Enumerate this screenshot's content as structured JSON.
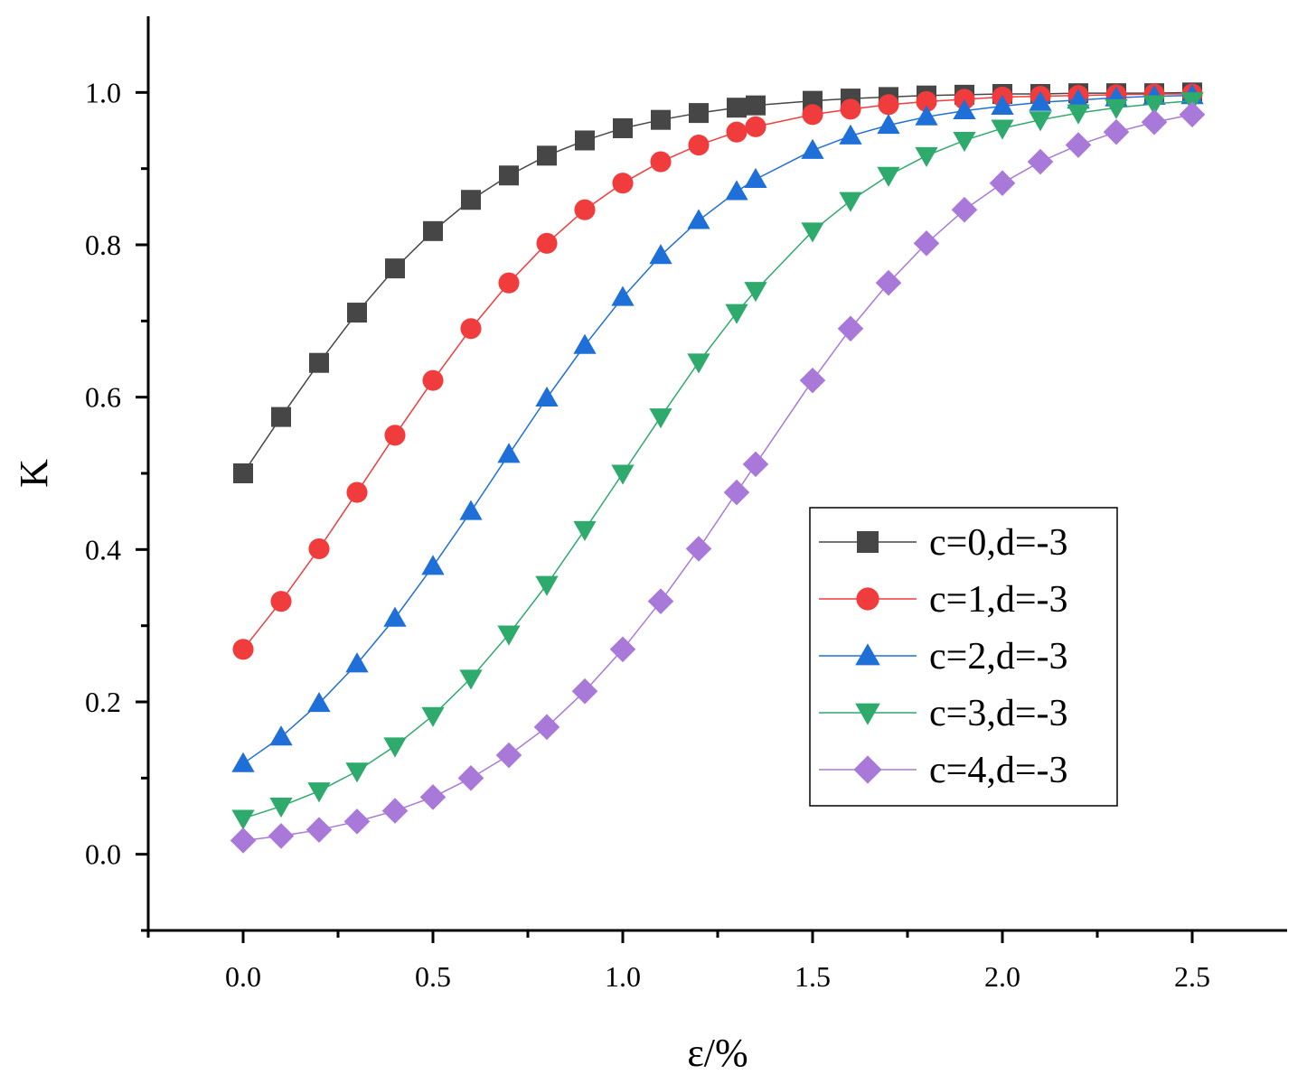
{
  "chart_data": {
    "type": "line",
    "title": "",
    "xlabel": "ε/%",
    "ylabel": "K",
    "xlim": [
      -0.25,
      2.75
    ],
    "ylim": [
      -0.1,
      1.1
    ],
    "xticks": [
      0.0,
      0.5,
      1.0,
      1.5,
      2.0,
      2.5
    ],
    "xtick_labels": [
      "0.0",
      "0.5",
      "1.0",
      "1.5",
      "2.0",
      "2.5"
    ],
    "yticks": [
      0.0,
      0.2,
      0.4,
      0.6,
      0.8,
      1.0
    ],
    "ytick_labels": [
      "0.0",
      "0.2",
      "0.4",
      "0.6",
      "0.8",
      "1.0"
    ],
    "grid": false,
    "legend_position": "center-right",
    "series": [
      {
        "name": "c=0,d=-3",
        "color": "#464646",
        "marker": "square",
        "x": [
          0,
          0.1,
          0.2,
          0.3,
          0.4,
          0.5,
          0.6,
          0.7,
          0.8,
          0.9,
          1.0,
          1.1,
          1.2,
          1.3,
          1.35,
          1.5,
          1.6,
          1.7,
          1.8,
          1.9,
          2.0,
          2.1,
          2.2,
          2.3,
          2.4,
          2.5
        ],
        "values": [
          0.5,
          0.574,
          0.645,
          0.711,
          0.769,
          0.818,
          0.859,
          0.891,
          0.917,
          0.937,
          0.953,
          0.964,
          0.973,
          0.98,
          0.983,
          0.989,
          0.992,
          0.994,
          0.996,
          0.997,
          0.998,
          0.998,
          0.999,
          0.999,
          0.999,
          1.0
        ]
      },
      {
        "name": "c=1,d=-3",
        "color": "#f03c3c",
        "marker": "circle",
        "x": [
          0,
          0.1,
          0.2,
          0.3,
          0.4,
          0.5,
          0.6,
          0.7,
          0.8,
          0.9,
          1.0,
          1.1,
          1.2,
          1.3,
          1.35,
          1.5,
          1.6,
          1.7,
          1.8,
          1.9,
          2.0,
          2.1,
          2.2,
          2.3,
          2.4,
          2.5
        ],
        "values": [
          0.269,
          0.332,
          0.401,
          0.475,
          0.55,
          0.622,
          0.69,
          0.75,
          0.802,
          0.846,
          0.881,
          0.909,
          0.931,
          0.948,
          0.955,
          0.971,
          0.978,
          0.984,
          0.988,
          0.991,
          0.994,
          0.995,
          0.996,
          0.997,
          0.998,
          0.998
        ]
      },
      {
        "name": "c=2,d=-3",
        "color": "#1f6fd9",
        "marker": "triangle-up",
        "x": [
          0,
          0.1,
          0.2,
          0.3,
          0.4,
          0.5,
          0.6,
          0.7,
          0.8,
          0.9,
          1.0,
          1.1,
          1.2,
          1.3,
          1.35,
          1.5,
          1.6,
          1.7,
          1.8,
          1.9,
          2.0,
          2.1,
          2.2,
          2.3,
          2.4,
          2.5
        ],
        "values": [
          0.119,
          0.154,
          0.198,
          0.25,
          0.31,
          0.378,
          0.45,
          0.525,
          0.599,
          0.668,
          0.731,
          0.786,
          0.832,
          0.87,
          0.886,
          0.924,
          0.943,
          0.957,
          0.968,
          0.976,
          0.982,
          0.987,
          0.99,
          0.993,
          0.995,
          0.996
        ]
      },
      {
        "name": "c=3,d=-3",
        "color": "#2eaa6c",
        "marker": "triangle-down",
        "x": [
          0,
          0.1,
          0.2,
          0.3,
          0.4,
          0.5,
          0.6,
          0.7,
          0.8,
          0.9,
          1.0,
          1.1,
          1.2,
          1.3,
          1.35,
          1.5,
          1.6,
          1.7,
          1.8,
          1.9,
          2.0,
          2.1,
          2.2,
          2.3,
          2.4,
          2.5
        ],
        "values": [
          0.047,
          0.063,
          0.083,
          0.109,
          0.142,
          0.182,
          0.231,
          0.289,
          0.354,
          0.426,
          0.5,
          0.574,
          0.646,
          0.711,
          0.74,
          0.818,
          0.858,
          0.891,
          0.917,
          0.937,
          0.953,
          0.964,
          0.973,
          0.98,
          0.985,
          0.989
        ]
      },
      {
        "name": "c=4,d=-3",
        "color": "#a979d9",
        "marker": "diamond",
        "x": [
          0,
          0.1,
          0.2,
          0.3,
          0.4,
          0.5,
          0.6,
          0.7,
          0.8,
          0.9,
          1.0,
          1.1,
          1.2,
          1.3,
          1.35,
          1.5,
          1.6,
          1.7,
          1.8,
          1.9,
          2.0,
          2.1,
          2.2,
          2.3,
          2.4,
          2.5
        ],
        "values": [
          0.018,
          0.024,
          0.032,
          0.043,
          0.057,
          0.075,
          0.1,
          0.13,
          0.167,
          0.214,
          0.269,
          0.332,
          0.401,
          0.475,
          0.512,
          0.622,
          0.69,
          0.75,
          0.802,
          0.846,
          0.881,
          0.909,
          0.931,
          0.948,
          0.961,
          0.971
        ]
      }
    ]
  }
}
